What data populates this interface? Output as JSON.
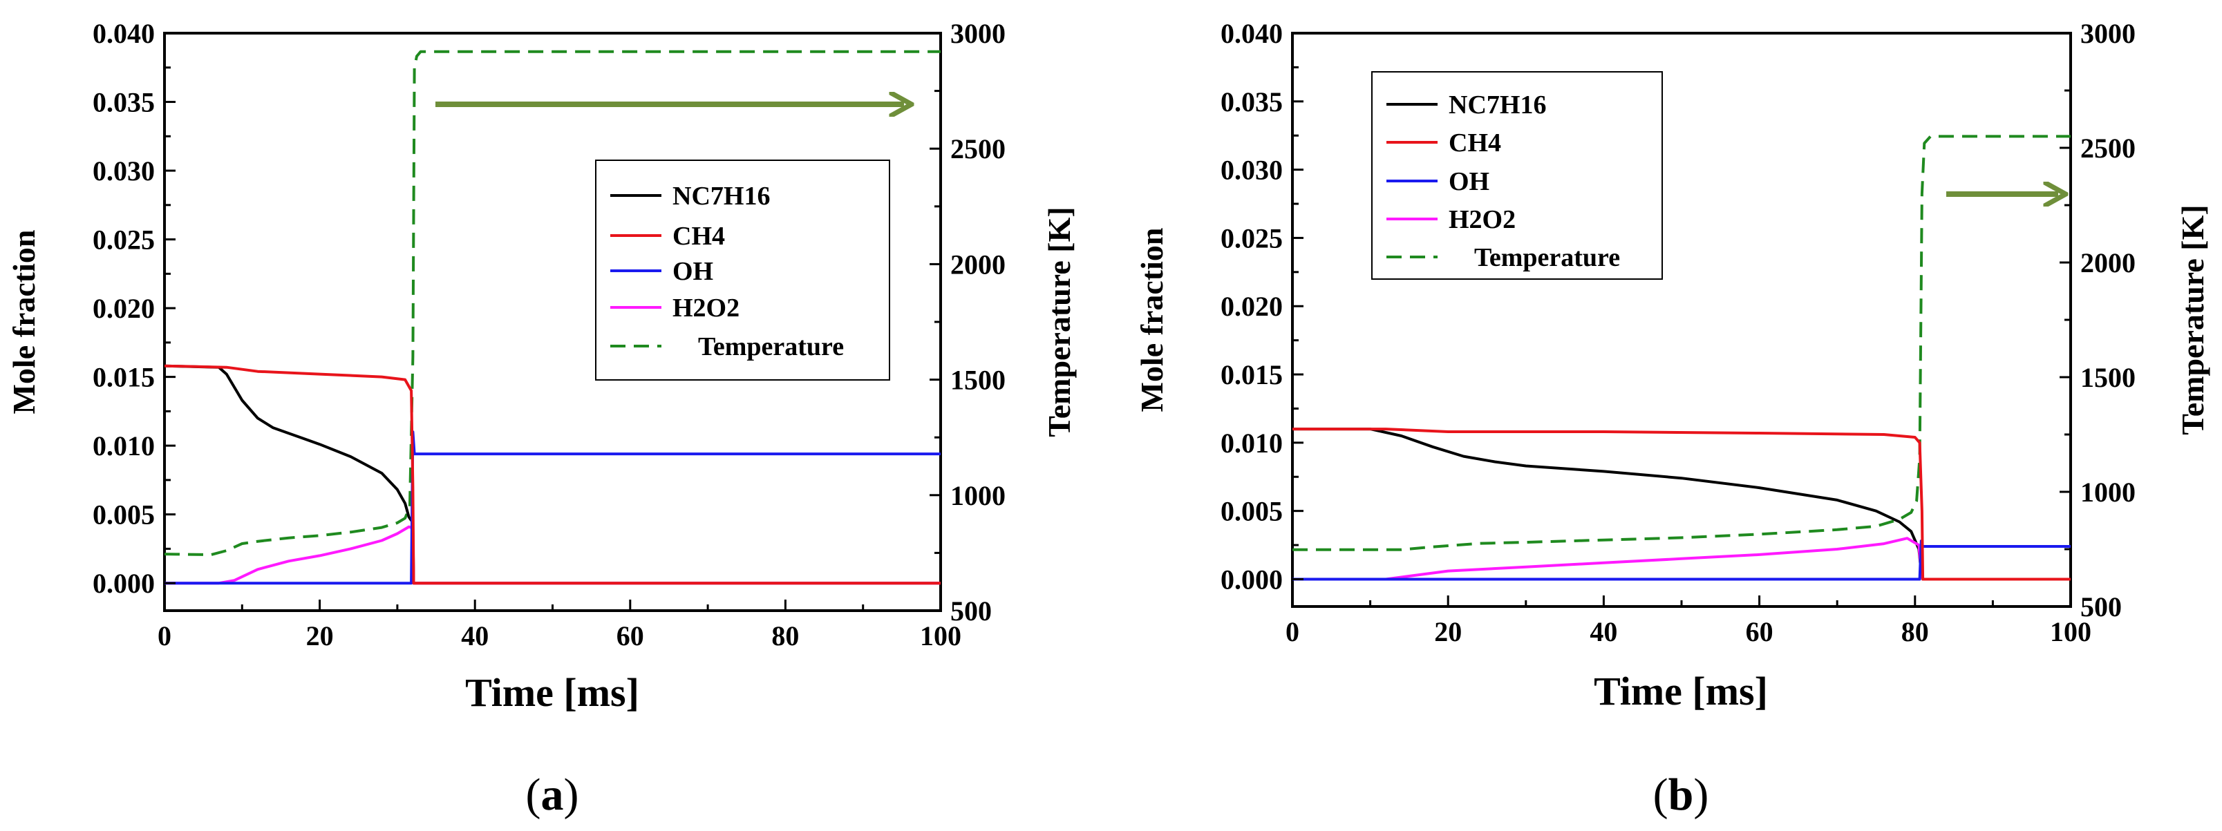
{
  "panels_caption": [
    {
      "open": "(",
      "letter": "a",
      "close": ")"
    },
    {
      "open": "(",
      "letter": "b",
      "close": ")"
    }
  ],
  "chart_data": [
    {
      "type": "line",
      "panel": "a",
      "xlabel": "Time [ms]",
      "ylabel": "Mole fraction",
      "y2label": "Temperature [K]",
      "xlim": [
        0,
        100
      ],
      "ylim": [
        -0.002,
        0.04
      ],
      "y2lim": [
        500,
        3000
      ],
      "xticks": [
        "0",
        "20",
        "40",
        "60",
        "80",
        "100"
      ],
      "yticks": [
        "0.000",
        "0.005",
        "0.010",
        "0.015",
        "0.020",
        "0.025",
        "0.030",
        "0.035",
        "0.040"
      ],
      "y2ticks": [
        "500",
        "1000",
        "1500",
        "2000",
        "2500",
        "3000"
      ],
      "legend_position": "center-right",
      "annotation": "arrow pointing right toward Temperature axis",
      "series": [
        {
          "name": "NC7H16",
          "color": "#000000",
          "dash": "solid",
          "axis": "left",
          "x": [
            0,
            7,
            8,
            10,
            12,
            14,
            16,
            20,
            24,
            28,
            30,
            31,
            31.5,
            32,
            32.1,
            100
          ],
          "y": [
            0.0158,
            0.0157,
            0.0152,
            0.0133,
            0.012,
            0.0113,
            0.0109,
            0.0101,
            0.0092,
            0.008,
            0.0068,
            0.0058,
            0.0048,
            0.0044,
            0.0,
            0.0
          ]
        },
        {
          "name": "CH4",
          "color": "#e8141b",
          "dash": "solid",
          "axis": "left",
          "x": [
            0,
            8,
            12,
            20,
            28,
            31,
            31.8,
            32,
            32.1,
            100
          ],
          "y": [
            0.0158,
            0.0157,
            0.0154,
            0.0152,
            0.015,
            0.0148,
            0.014,
            0.007,
            0.0,
            0.0
          ]
        },
        {
          "name": "OH",
          "color": "#1a1aef",
          "dash": "solid",
          "axis": "left",
          "x": [
            0,
            31.8,
            32,
            32.2,
            100
          ],
          "y": [
            0.0,
            0.0,
            0.011,
            0.0094,
            0.0094
          ]
        },
        {
          "name": "H2O2",
          "color": "#ff1aff",
          "dash": "solid",
          "axis": "left",
          "x": [
            0,
            7,
            9,
            12,
            16,
            20,
            24,
            28,
            30,
            31.5,
            32,
            32.1,
            100
          ],
          "y": [
            0.0,
            0.0,
            0.0002,
            0.001,
            0.0016,
            0.002,
            0.0025,
            0.0031,
            0.0036,
            0.0041,
            0.004,
            0.0,
            0.0
          ]
        },
        {
          "name": "Temperature",
          "color": "#1f8a1f",
          "dash": "dashed",
          "axis": "right",
          "x": [
            0,
            6,
            8,
            10,
            12,
            16,
            20,
            24,
            28,
            30,
            31,
            31.6,
            32,
            32.2,
            32.5,
            33,
            100
          ],
          "y": [
            745,
            742,
            760,
            790,
            800,
            815,
            825,
            840,
            860,
            880,
            900,
            950,
            1600,
            2850,
            2900,
            2920,
            2920
          ]
        }
      ]
    },
    {
      "type": "line",
      "panel": "b",
      "xlabel": "Time [ms]",
      "ylabel": "Mole fraction",
      "y2label": "Temperature [K]",
      "xlim": [
        0,
        100
      ],
      "ylim": [
        -0.002,
        0.04
      ],
      "y2lim": [
        500,
        3000
      ],
      "xticks": [
        "0",
        "20",
        "40",
        "60",
        "80",
        "100"
      ],
      "yticks": [
        "0.000",
        "0.005",
        "0.010",
        "0.015",
        "0.020",
        "0.025",
        "0.030",
        "0.035",
        "0.040"
      ],
      "y2ticks": [
        "500",
        "1000",
        "1500",
        "2000",
        "2500",
        "3000"
      ],
      "legend_position": "top-left",
      "annotation": "arrow pointing right toward Temperature axis",
      "series": [
        {
          "name": "NC7H16",
          "color": "#000000",
          "dash": "solid",
          "axis": "left",
          "x": [
            0,
            10,
            14,
            18,
            22,
            26,
            30,
            40,
            50,
            60,
            70,
            75,
            78,
            79.5,
            80.5,
            80.8,
            81,
            100
          ],
          "y": [
            0.011,
            0.011,
            0.0105,
            0.0097,
            0.009,
            0.0086,
            0.0083,
            0.0079,
            0.0074,
            0.0067,
            0.0058,
            0.005,
            0.0042,
            0.0035,
            0.0022,
            0.0005,
            0.0,
            0.0
          ]
        },
        {
          "name": "CH4",
          "color": "#e8141b",
          "dash": "solid",
          "axis": "left",
          "x": [
            0,
            12,
            20,
            40,
            60,
            76,
            80,
            80.6,
            80.9,
            81,
            100
          ],
          "y": [
            0.011,
            0.011,
            0.0108,
            0.0108,
            0.0107,
            0.0106,
            0.0104,
            0.01,
            0.005,
            0.0,
            0.0
          ]
        },
        {
          "name": "OH",
          "color": "#1a1aef",
          "dash": "solid",
          "axis": "left",
          "x": [
            0,
            80.6,
            80.8,
            81,
            100
          ],
          "y": [
            0.0,
            0.0,
            0.0028,
            0.0024,
            0.0024
          ]
        },
        {
          "name": "H2O2",
          "color": "#ff1aff",
          "dash": "solid",
          "axis": "left",
          "x": [
            0,
            12,
            16,
            20,
            30,
            40,
            50,
            60,
            70,
            76,
            79,
            80.5,
            80.8,
            81,
            100
          ],
          "y": [
            0.0,
            0.0,
            0.0003,
            0.0006,
            0.0009,
            0.0012,
            0.0015,
            0.0018,
            0.0022,
            0.0026,
            0.003,
            0.0025,
            0.0005,
            0.0,
            0.0
          ]
        },
        {
          "name": "Temperature",
          "color": "#1f8a1f",
          "dash": "dashed",
          "axis": "right",
          "x": [
            0,
            14,
            18,
            24,
            30,
            40,
            50,
            60,
            70,
            75,
            78,
            79.5,
            80.2,
            80.6,
            80.9,
            81.2,
            82,
            100
          ],
          "y": [
            748,
            748,
            760,
            775,
            780,
            790,
            800,
            815,
            835,
            850,
            880,
            910,
            960,
            1150,
            2300,
            2520,
            2550,
            2550
          ]
        }
      ]
    }
  ]
}
